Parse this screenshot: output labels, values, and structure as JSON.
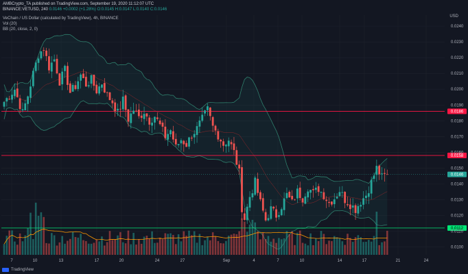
{
  "header": {
    "publisher": "AMBCrypto_TA published on TradingView.com, September 19, 2020 11:12:07 UTC",
    "symbol": "BINANCE:VETUSD, 240",
    "price": "0.0146",
    "change": "+0.0002 (+1.28%)",
    "ohlc": "O:0.0145 H:0.0147 L:0.0140 C:0.0146",
    "title": "VeChain / US Dollar (calculated by TradingView), 4h, BINANCE",
    "vol_label": "Vol (20)",
    "bb_label": "BB (20, close, 2, 0)",
    "currency": "USD"
  },
  "footer": {
    "brand": "TradingView"
  },
  "colors": {
    "bg": "#131722",
    "up": "#26a69a",
    "down": "#ef5350",
    "grid": "#1e222d",
    "resistance": "#ff1744",
    "support": "#00e676",
    "bb": "#1b5e4f",
    "vol_ma": "#ff9800",
    "axis_text": "#b2b5be"
  },
  "chart_data": {
    "type": "candlestick",
    "title": "VeChain / US Dollar (calculated by TradingView), 4h, BINANCE",
    "y_ticks": [
      "0.0240",
      "0.0230",
      "0.0220",
      "0.0210",
      "0.0200",
      "0.0190",
      "0.0180",
      "0.0170",
      "0.0160",
      "0.0150",
      "0.0140",
      "0.0130",
      "0.0120",
      "0.0110",
      "0.0100"
    ],
    "x_ticks": [
      "7",
      "10",
      "13",
      "17",
      "20",
      "24",
      "27",
      "Sep",
      "4",
      "7",
      "10",
      "14",
      "17",
      "21",
      "24"
    ],
    "ylim": [
      0.0095,
      0.0247
    ],
    "levels": [
      {
        "label": "0.0186",
        "value": 0.0186,
        "color": "resistance"
      },
      {
        "label": "0.0158",
        "value": 0.0158,
        "color": "resistance"
      },
      {
        "label": "0.0112",
        "value": 0.0112,
        "color": "support"
      }
    ],
    "last_price_label": "0.0146",
    "last_price": 0.0146,
    "anchors": [
      [
        0,
        0.0192
      ],
      [
        4,
        0.02
      ],
      [
        7,
        0.0185
      ],
      [
        9,
        0.0196
      ],
      [
        11,
        0.021
      ],
      [
        13,
        0.0222
      ],
      [
        15,
        0.0226
      ],
      [
        17,
        0.0214
      ],
      [
        19,
        0.0219
      ],
      [
        21,
        0.0205
      ],
      [
        23,
        0.0212
      ],
      [
        25,
        0.0198
      ],
      [
        27,
        0.0202
      ],
      [
        29,
        0.0209
      ],
      [
        31,
        0.0203
      ],
      [
        33,
        0.0206
      ],
      [
        35,
        0.0199
      ],
      [
        37,
        0.0204
      ],
      [
        39,
        0.0196
      ],
      [
        41,
        0.0192
      ],
      [
        43,
        0.0185
      ],
      [
        45,
        0.0193
      ],
      [
        47,
        0.0181
      ],
      [
        49,
        0.0187
      ],
      [
        51,
        0.0182
      ],
      [
        53,
        0.0186
      ],
      [
        55,
        0.018
      ],
      [
        57,
        0.0183
      ],
      [
        59,
        0.0177
      ],
      [
        61,
        0.017
      ],
      [
        63,
        0.0174
      ],
      [
        65,
        0.0163
      ],
      [
        67,
        0.0168
      ],
      [
        69,
        0.0165
      ],
      [
        71,
        0.0171
      ],
      [
        73,
        0.0175
      ],
      [
        75,
        0.0181
      ],
      [
        77,
        0.0187
      ],
      [
        79,
        0.0176
      ],
      [
        81,
        0.0171
      ],
      [
        83,
        0.0165
      ],
      [
        85,
        0.0168
      ],
      [
        87,
        0.016
      ],
      [
        89,
        0.0147
      ],
      [
        90,
        0.0125
      ],
      [
        91,
        0.0118
      ],
      [
        93,
        0.0132
      ],
      [
        95,
        0.0141
      ],
      [
        97,
        0.0128
      ],
      [
        99,
        0.0117
      ],
      [
        101,
        0.0124
      ],
      [
        103,
        0.012
      ],
      [
        105,
        0.0126
      ],
      [
        107,
        0.0133
      ],
      [
        109,
        0.0128
      ],
      [
        111,
        0.0135
      ],
      [
        113,
        0.0131
      ],
      [
        115,
        0.0138
      ],
      [
        117,
        0.0134
      ],
      [
        119,
        0.0137
      ],
      [
        121,
        0.0133
      ],
      [
        123,
        0.0128
      ],
      [
        125,
        0.0131
      ],
      [
        127,
        0.0136
      ],
      [
        129,
        0.013
      ],
      [
        131,
        0.0127
      ],
      [
        133,
        0.0124
      ],
      [
        135,
        0.0129
      ],
      [
        137,
        0.0133
      ],
      [
        139,
        0.0141
      ],
      [
        141,
        0.015
      ],
      [
        143,
        0.0144
      ],
      [
        145,
        0.0146
      ]
    ]
  }
}
